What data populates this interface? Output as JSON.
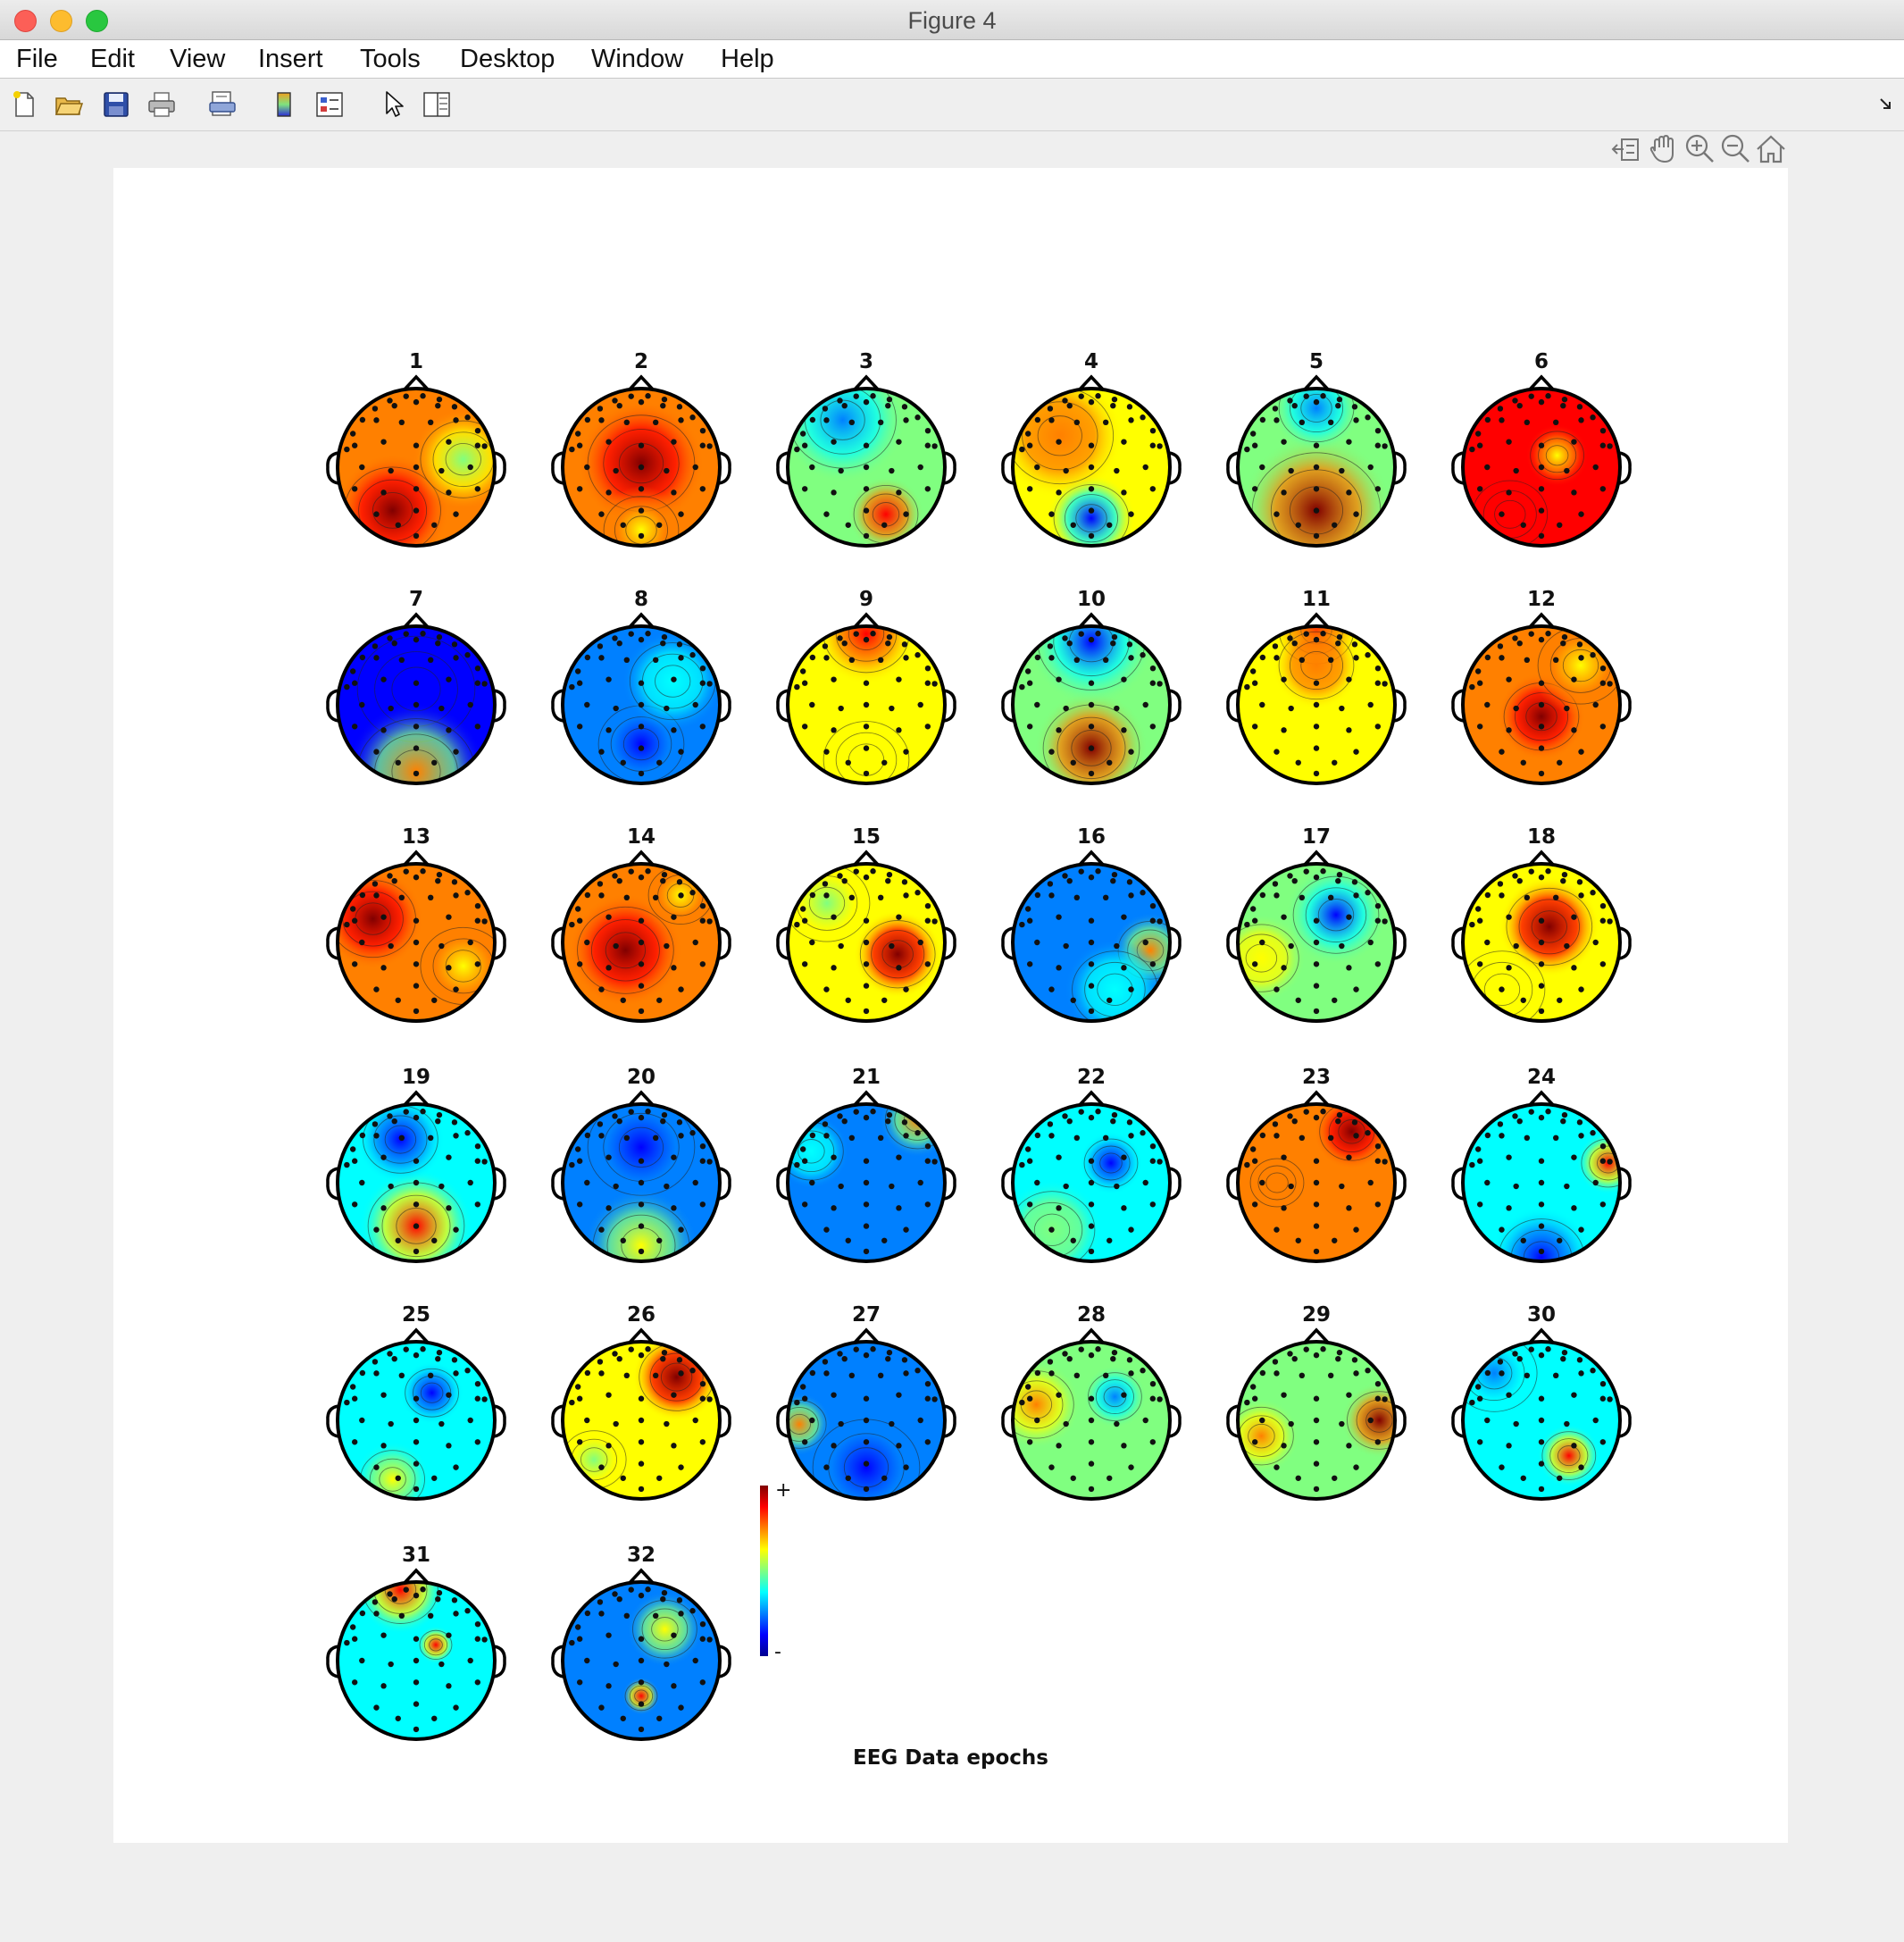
{
  "window": {
    "title": "Figure 4"
  },
  "menu": [
    "File",
    "Edit",
    "View",
    "Insert",
    "Tools",
    "Desktop",
    "Window",
    "Help"
  ],
  "toolbar": [
    "new-figure-icon",
    "open-file-icon",
    "save-icon",
    "print-icon",
    "print-preview-icon",
    "colorbar-icon",
    "legend-icon",
    "pointer-icon",
    "property-editor-icon"
  ],
  "axes_toolbar": [
    "export-icon",
    "pan-hand-icon",
    "zoom-in-icon",
    "zoom-out-icon",
    "home-icon"
  ],
  "figure": {
    "caption": "EEG Data epochs",
    "colorbar": {
      "plus_label": "+",
      "minus_label": "-"
    }
  },
  "colormap": [
    "#00008f",
    "#0000ff",
    "#0080ff",
    "#00ffff",
    "#80ff80",
    "#ffff00",
    "#ff8000",
    "#ff0000",
    "#800000"
  ],
  "chart_data": {
    "type": "heatmap",
    "subtype": "scalp-topography-grid",
    "title": "EEG Data epochs",
    "colorbar_labels": [
      "+",
      "-"
    ],
    "components": [
      {
        "label": "1",
        "baseline": 0.72,
        "blobs": [
          [
            -0.3,
            0.55,
            0.45,
            0.28
          ],
          [
            0.6,
            -0.1,
            0.4,
            -0.2
          ]
        ]
      },
      {
        "label": "2",
        "baseline": 0.78,
        "blobs": [
          [
            0.0,
            -0.05,
            0.5,
            0.2
          ],
          [
            0.0,
            0.8,
            0.35,
            -0.1
          ]
        ]
      },
      {
        "label": "3",
        "baseline": 0.45,
        "blobs": [
          [
            0.25,
            0.6,
            0.3,
            0.45
          ],
          [
            -0.3,
            -0.6,
            0.5,
            -0.15
          ]
        ]
      },
      {
        "label": "4",
        "baseline": 0.58,
        "blobs": [
          [
            0.0,
            0.65,
            0.35,
            -0.48
          ],
          [
            -0.4,
            -0.4,
            0.5,
            0.15
          ]
        ]
      },
      {
        "label": "5",
        "baseline": 0.45,
        "blobs": [
          [
            0.0,
            0.55,
            0.6,
            0.5
          ],
          [
            0.0,
            -0.75,
            0.35,
            -0.15
          ]
        ]
      },
      {
        "label": "6",
        "baseline": 0.82,
        "blobs": [
          [
            0.2,
            -0.15,
            0.25,
            -0.15
          ],
          [
            -0.4,
            0.6,
            0.35,
            0.1
          ]
        ]
      },
      {
        "label": "7",
        "baseline": 0.15,
        "blobs": [
          [
            0.0,
            -0.2,
            0.55,
            -0.05
          ],
          [
            0.0,
            0.85,
            0.55,
            0.55
          ]
        ]
      },
      {
        "label": "8",
        "baseline": 0.22,
        "blobs": [
          [
            0.0,
            0.5,
            0.4,
            -0.12
          ],
          [
            0.4,
            -0.3,
            0.4,
            0.12
          ]
        ]
      },
      {
        "label": "9",
        "baseline": 0.66,
        "blobs": [
          [
            0.0,
            -0.9,
            0.4,
            0.25
          ],
          [
            0.0,
            0.7,
            0.4,
            -0.04
          ]
        ]
      },
      {
        "label": "10",
        "baseline": 0.5,
        "blobs": [
          [
            0.0,
            0.55,
            0.45,
            0.48
          ],
          [
            0.0,
            -0.8,
            0.5,
            -0.35
          ]
        ]
      },
      {
        "label": "11",
        "baseline": 0.58,
        "blobs": [
          [
            0.0,
            -0.95,
            0.35,
            0.35
          ],
          [
            0.0,
            -0.5,
            0.35,
            0.15
          ]
        ]
      },
      {
        "label": "12",
        "baseline": 0.72,
        "blobs": [
          [
            0.0,
            0.15,
            0.35,
            0.25
          ],
          [
            0.5,
            -0.5,
            0.4,
            -0.15
          ]
        ]
      },
      {
        "label": "13",
        "baseline": 0.78,
        "blobs": [
          [
            -0.55,
            -0.3,
            0.4,
            0.18
          ],
          [
            0.6,
            0.3,
            0.4,
            -0.12
          ]
        ]
      },
      {
        "label": "14",
        "baseline": 0.8,
        "blobs": [
          [
            -0.2,
            0.1,
            0.45,
            0.18
          ],
          [
            0.5,
            -0.6,
            0.3,
            -0.2
          ]
        ]
      },
      {
        "label": "15",
        "baseline": 0.6,
        "blobs": [
          [
            0.4,
            0.15,
            0.35,
            0.35
          ],
          [
            -0.5,
            -0.5,
            0.4,
            -0.05
          ]
        ]
      },
      {
        "label": "16",
        "baseline": 0.2,
        "blobs": [
          [
            0.75,
            0.1,
            0.3,
            0.55
          ],
          [
            0.3,
            0.6,
            0.4,
            0.15
          ]
        ]
      },
      {
        "label": "17",
        "baseline": 0.45,
        "blobs": [
          [
            0.25,
            -0.35,
            0.4,
            -0.3
          ],
          [
            -0.7,
            0.2,
            0.35,
            0.15
          ]
        ]
      },
      {
        "label": "18",
        "baseline": 0.66,
        "blobs": [
          [
            0.1,
            -0.2,
            0.4,
            0.3
          ],
          [
            -0.5,
            0.6,
            0.4,
            -0.08
          ]
        ]
      },
      {
        "label": "19",
        "baseline": 0.32,
        "blobs": [
          [
            0.0,
            0.55,
            0.45,
            0.55
          ],
          [
            -0.2,
            -0.55,
            0.35,
            -0.15
          ]
        ]
      },
      {
        "label": "20",
        "baseline": 0.28,
        "blobs": [
          [
            0.0,
            -0.45,
            0.5,
            -0.1
          ],
          [
            0.0,
            0.8,
            0.45,
            0.3
          ]
        ]
      },
      {
        "label": "21",
        "baseline": 0.2,
        "blobs": [
          [
            0.65,
            -0.8,
            0.3,
            0.6
          ],
          [
            -0.7,
            -0.4,
            0.3,
            0.15
          ]
        ]
      },
      {
        "label": "22",
        "baseline": 0.38,
        "blobs": [
          [
            0.25,
            -0.25,
            0.25,
            -0.2
          ],
          [
            -0.5,
            0.6,
            0.4,
            0.12
          ]
        ]
      },
      {
        "label": "23",
        "baseline": 0.7,
        "blobs": [
          [
            0.45,
            -0.65,
            0.3,
            0.25
          ],
          [
            -0.5,
            0.0,
            0.25,
            0.1
          ]
        ]
      },
      {
        "label": "24",
        "baseline": 0.38,
        "blobs": [
          [
            0.85,
            -0.25,
            0.25,
            0.5
          ],
          [
            0.0,
            0.95,
            0.4,
            -0.2
          ]
        ]
      },
      {
        "label": "25",
        "baseline": 0.38,
        "blobs": [
          [
            0.2,
            -0.35,
            0.25,
            -0.22
          ],
          [
            -0.3,
            0.75,
            0.3,
            0.3
          ]
        ]
      },
      {
        "label": "26",
        "baseline": 0.62,
        "blobs": [
          [
            0.45,
            -0.55,
            0.35,
            0.35
          ],
          [
            -0.6,
            0.5,
            0.3,
            -0.1
          ]
        ]
      },
      {
        "label": "27",
        "baseline": 0.25,
        "blobs": [
          [
            -0.85,
            0.05,
            0.25,
            0.55
          ],
          [
            0.0,
            0.6,
            0.5,
            -0.1
          ]
        ]
      },
      {
        "label": "28",
        "baseline": 0.55,
        "blobs": [
          [
            0.3,
            -0.3,
            0.25,
            -0.35
          ],
          [
            -0.7,
            -0.2,
            0.35,
            0.25
          ]
        ]
      },
      {
        "label": "29",
        "baseline": 0.52,
        "blobs": [
          [
            0.8,
            0.0,
            0.3,
            0.45
          ],
          [
            -0.7,
            0.2,
            0.3,
            0.25
          ]
        ]
      },
      {
        "label": "30",
        "baseline": 0.4,
        "blobs": [
          [
            0.35,
            0.45,
            0.25,
            0.45
          ],
          [
            -0.6,
            -0.6,
            0.4,
            -0.2
          ]
        ]
      },
      {
        "label": "31",
        "baseline": 0.35,
        "blobs": [
          [
            0.25,
            -0.2,
            0.15,
            0.55
          ],
          [
            -0.2,
            -0.9,
            0.35,
            0.5
          ]
        ]
      },
      {
        "label": "32",
        "baseline": 0.3,
        "blobs": [
          [
            0.0,
            0.45,
            0.15,
            0.55
          ],
          [
            0.3,
            -0.4,
            0.3,
            0.35
          ]
        ]
      }
    ]
  }
}
